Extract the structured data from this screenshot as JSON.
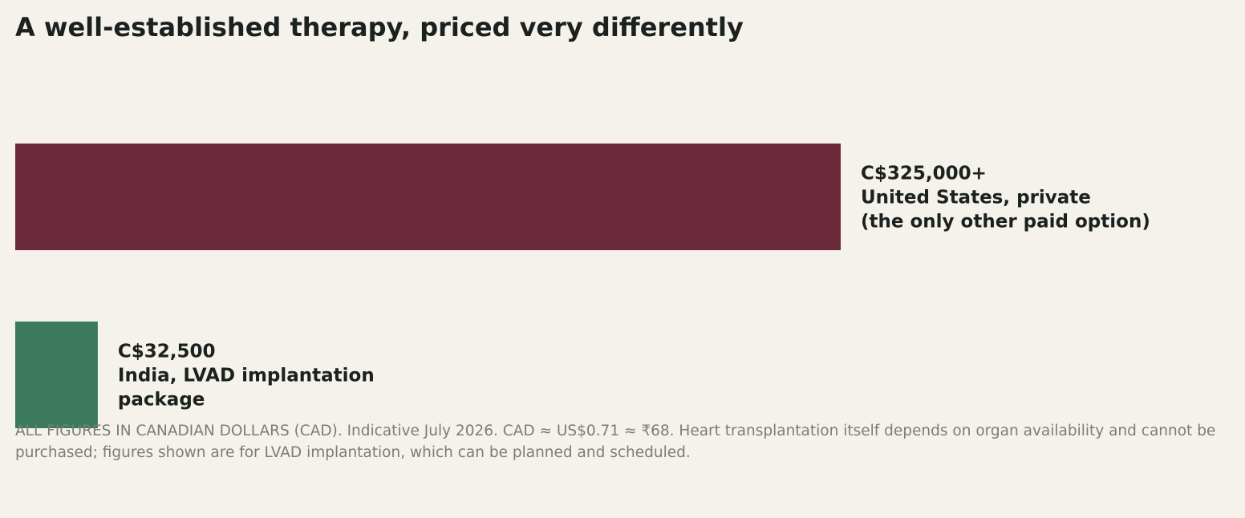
{
  "chart_data": {
    "type": "bar",
    "orientation": "horizontal",
    "title": "A well-established therapy, priced very differently",
    "categories": [
      "United States, private",
      "India, LVAD implantation package"
    ],
    "values": [
      325000,
      32500
    ],
    "value_labels": [
      "C$325,000+",
      "C$32,500"
    ],
    "category_labels": [
      [
        "United States, private",
        "(the only other paid option)"
      ],
      [
        "India, LVAD implantation",
        "package"
      ]
    ],
    "colors": [
      "#6b2a3b",
      "#3b7a5e"
    ],
    "xlim": [
      0,
      325000
    ],
    "grid": false,
    "legend": "none"
  },
  "footnote": "ALL FIGURES IN CANADIAN DOLLARS (CAD). Indicative July 2026. CAD ≈ US$0.71 ≈ ₹68. Heart transplantation itself depends on organ availability and cannot be purchased; figures shown are for LVAD implantation, which can be planned and scheduled."
}
